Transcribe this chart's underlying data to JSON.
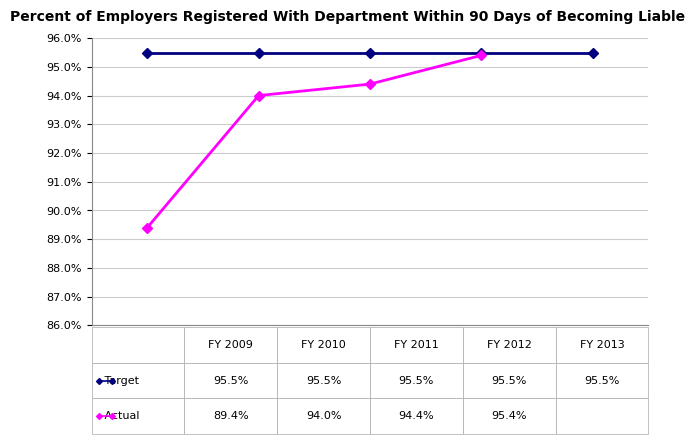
{
  "title": "Percent of Employers Registered With Department Within 90 Days of Becoming Liable",
  "categories": [
    "FY 2009",
    "FY 2010",
    "FY 2011",
    "FY 2012",
    "FY 2013"
  ],
  "target_values": [
    95.5,
    95.5,
    95.5,
    95.5,
    95.5
  ],
  "actual_values": [
    89.4,
    94.0,
    94.4,
    95.4,
    null
  ],
  "target_labels": [
    "95.5%",
    "95.5%",
    "95.5%",
    "95.5%",
    "95.5%"
  ],
  "actual_labels": [
    "89.4%",
    "94.0%",
    "94.4%",
    "95.4%",
    ""
  ],
  "target_color": "#000080",
  "actual_color": "#FF00FF",
  "ylim_min": 86.0,
  "ylim_max": 96.0,
  "ytick_step": 1.0,
  "background_color": "#ffffff",
  "grid_color": "#cccccc",
  "title_fontsize": 10,
  "tick_fontsize": 8,
  "table_fontsize": 8,
  "legend_labels": [
    "Target",
    "Actual"
  ]
}
